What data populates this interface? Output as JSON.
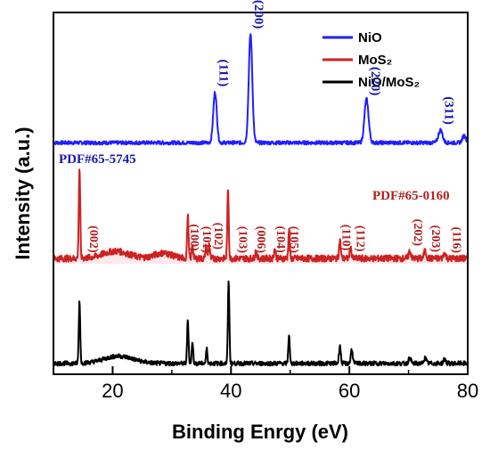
{
  "chart_data": {
    "type": "line",
    "xlabel": "Binding Enrgy (eV)",
    "ylabel": "Intensity (a.u.)",
    "xlim": [
      10,
      80
    ],
    "x_ticks": [
      20,
      40,
      60,
      80
    ],
    "ylim": [
      0,
      100
    ],
    "grid": false,
    "legend_position": "top-right",
    "legend": [
      {
        "name": "NiO",
        "color": "#1f1fff"
      },
      {
        "name": "MoS₂",
        "color": "#cc2222"
      },
      {
        "name": "NiO/MoS₂",
        "color": "#000000"
      }
    ],
    "series": [
      {
        "name": "NiO",
        "color": "#1f1fff",
        "baseline": 64,
        "noise": 0.5,
        "peaks": [
          [
            37.3,
            14,
            0.3
          ],
          [
            43.3,
            30,
            0.3
          ],
          [
            62.9,
            12,
            0.35
          ],
          [
            75.4,
            3.5,
            0.35
          ],
          [
            79.4,
            2,
            0.3
          ]
        ]
      },
      {
        "name": "MoS₂",
        "color": "#cc2222",
        "baseline": 32,
        "noise": 0.9,
        "peaks": [
          [
            14.4,
            25,
            0.12
          ],
          [
            32.7,
            12,
            0.12
          ],
          [
            33.5,
            4,
            0.12
          ],
          [
            35.8,
            3.5,
            0.12
          ],
          [
            36.3,
            4,
            0.12
          ],
          [
            39.5,
            19,
            0.12
          ],
          [
            44.2,
            2,
            0.15
          ],
          [
            47.4,
            2.5,
            0.15
          ],
          [
            49.8,
            8,
            0.12
          ],
          [
            58.4,
            5,
            0.15
          ],
          [
            60.2,
            3,
            0.15
          ],
          [
            70.2,
            2,
            0.2
          ],
          [
            72.8,
            2,
            0.2
          ],
          [
            76.1,
            1.5,
            0.2
          ]
        ],
        "humps": [
          [
            20.5,
            2,
            2.2
          ],
          [
            28.5,
            1.5,
            1.5
          ]
        ]
      },
      {
        "name": "NiO/MoS₂",
        "color": "#000000",
        "baseline": 3,
        "noise": 0.6,
        "peaks": [
          [
            14.4,
            17,
            0.12
          ],
          [
            32.7,
            12,
            0.12
          ],
          [
            33.5,
            6,
            0.12
          ],
          [
            35.9,
            4,
            0.12
          ],
          [
            39.6,
            23,
            0.12
          ],
          [
            49.8,
            8,
            0.12
          ],
          [
            58.4,
            5,
            0.15
          ],
          [
            60.4,
            4,
            0.15
          ],
          [
            70.2,
            1.5,
            0.2
          ],
          [
            72.8,
            1.5,
            0.2
          ],
          [
            76.1,
            1.2,
            0.2
          ]
        ],
        "humps": [
          [
            21,
            2,
            2.5
          ]
        ]
      }
    ],
    "annotations": {
      "nio_pdf": "PDF#65-5745",
      "mos2_pdf": "PDF#65-0160",
      "nio_labels": [
        {
          "text": "(111)",
          "x": 37.3
        },
        {
          "text": "(200)",
          "x": 43.3
        },
        {
          "text": "(220)",
          "x": 63.0
        },
        {
          "text": "(311)",
          "x": 75.4
        }
      ],
      "mos2_labels": [
        {
          "text": "(002)",
          "x": 15.4
        },
        {
          "text": "(100)",
          "x": 32.4
        },
        {
          "text": "(101)",
          "x": 34.5
        },
        {
          "text": "(102)",
          "x": 36.5
        },
        {
          "text": "(103)",
          "x": 40.6
        },
        {
          "text": "(006)",
          "x": 43.7
        },
        {
          "text": "(104)",
          "x": 47.0
        },
        {
          "text": "(105)",
          "x": 49.3
        },
        {
          "text": "(110)",
          "x": 58.1
        },
        {
          "text": "(112)",
          "x": 60.5
        },
        {
          "text": "(202)",
          "x": 70.2
        },
        {
          "text": "(203)",
          "x": 73.2
        },
        {
          "text": "(116)",
          "x": 76.8
        }
      ]
    }
  }
}
